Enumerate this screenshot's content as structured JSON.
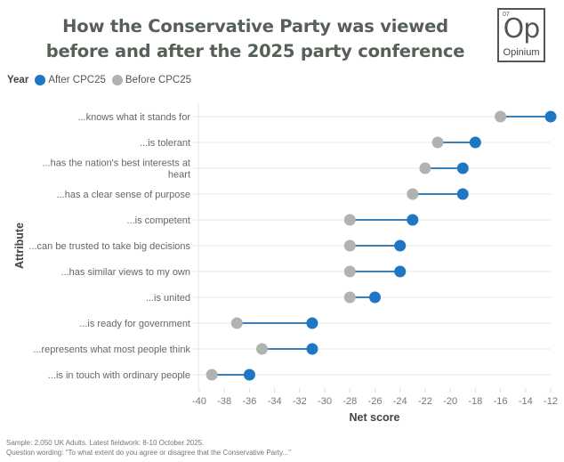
{
  "header": {
    "title_line1": "How the Conservative Party was viewed",
    "title_line2": "before and after the 2025 party conference"
  },
  "logo": {
    "number": "07",
    "symbol": "Op",
    "name": "Opinium"
  },
  "legend": {
    "title": "Year",
    "items": [
      {
        "label": "After CPC25",
        "color": "#1f77c4"
      },
      {
        "label": "Before CPC25",
        "color": "#b0b3ae"
      }
    ]
  },
  "footer": {
    "line1": "Sample: 2,050 UK Adults. Latest fieldwork: 8-10 October 2025.",
    "line2": "Question wording: \"To what extent do you agree or disagree that the Conservative Party...\""
  },
  "chart_data": {
    "type": "dumbbell",
    "title": "How the Conservative Party was viewed before and after the 2025 party conference",
    "xlabel": "Net score",
    "ylabel": "Attribute",
    "xlim": [
      -40,
      -12
    ],
    "xticks": [
      -40,
      -38,
      -36,
      -34,
      -32,
      -30,
      -28,
      -26,
      -24,
      -22,
      -20,
      -18,
      -16,
      -14,
      -12
    ],
    "grid": true,
    "legend_position": "top-left",
    "categories": [
      [
        "...knows what it stands for"
      ],
      [
        "...is tolerant"
      ],
      [
        "...has the nation's best interests at",
        "heart"
      ],
      [
        "...has a clear sense of purpose"
      ],
      [
        "...is competent"
      ],
      [
        "...can be trusted to take big decisions"
      ],
      [
        "...has similar views to my own"
      ],
      [
        "...is united"
      ],
      [
        "...is ready for government"
      ],
      [
        "...represents what most people think"
      ],
      [
        "...is in touch with ordinary people"
      ]
    ],
    "series": [
      {
        "name": "Before CPC25",
        "color": "#b0b3ae",
        "values": [
          -16,
          -21,
          -22,
          -23,
          -28,
          -28,
          -28,
          -28,
          -37,
          -35,
          -39
        ]
      },
      {
        "name": "After CPC25",
        "color": "#1f77c4",
        "values": [
          -12,
          -18,
          -19,
          -19,
          -23,
          -24,
          -24,
          -26,
          -31,
          -31,
          -36
        ]
      }
    ],
    "connector_color": "#3a7fb8"
  }
}
